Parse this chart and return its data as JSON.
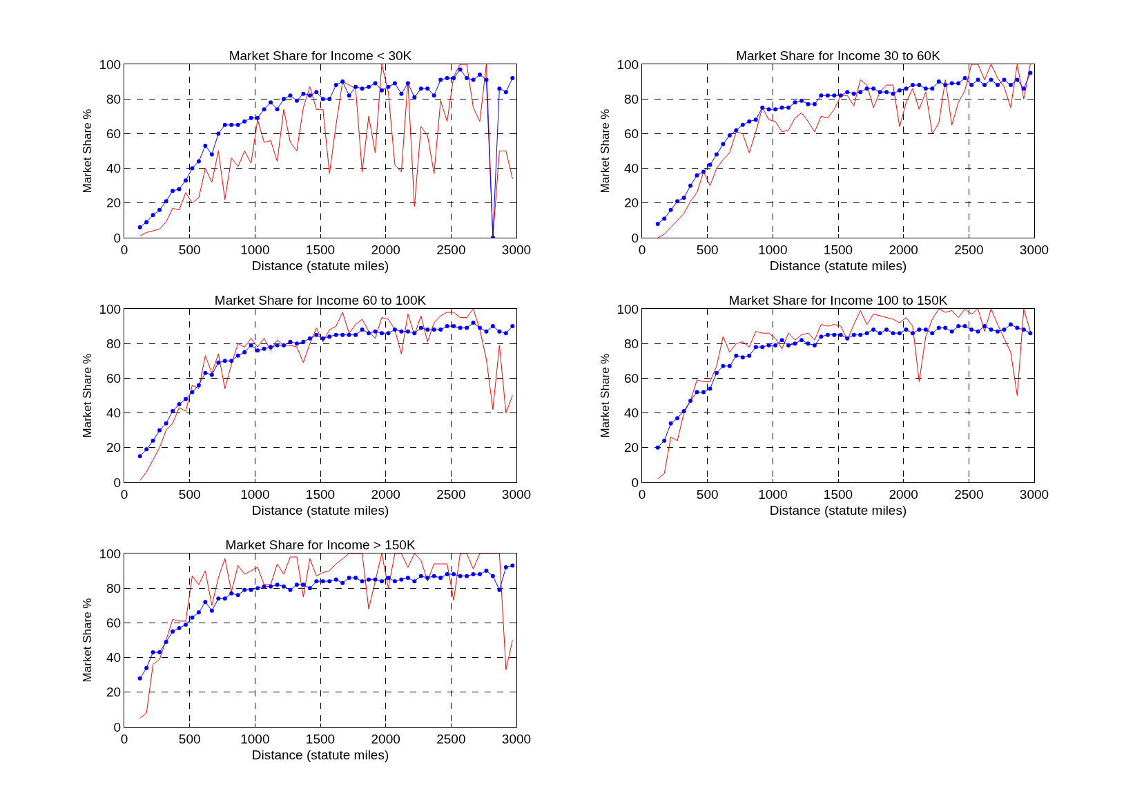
{
  "chart_data": [
    {
      "type": "line",
      "title": "Market Share for Income < 30K",
      "xlabel": "Distance (statute miles)",
      "ylabel": "Market Share %",
      "xlim": [
        0,
        3000
      ],
      "xticks": [
        0,
        500,
        1000,
        1500,
        2000,
        2500,
        3000
      ],
      "ylim": [
        0,
        100
      ],
      "yticks": [
        0,
        20,
        40,
        60,
        80,
        100
      ],
      "grid": true,
      "x": [
        120,
        170,
        220,
        270,
        320,
        370,
        420,
        470,
        520,
        570,
        620,
        670,
        720,
        770,
        820,
        870,
        920,
        970,
        1020,
        1070,
        1120,
        1170,
        1220,
        1270,
        1320,
        1370,
        1420,
        1470,
        1520,
        1570,
        1620,
        1670,
        1720,
        1770,
        1820,
        1870,
        1920,
        1970,
        2020,
        2070,
        2120,
        2170,
        2220,
        2270,
        2320,
        2370,
        2420,
        2470,
        2520,
        2570,
        2620,
        2670,
        2720,
        2770,
        2820,
        2870,
        2920,
        2970
      ],
      "series": [
        {
          "color": "#ff0000",
          "marker": "none",
          "values": [
            1,
            3,
            4,
            5,
            9,
            17,
            16,
            26,
            20,
            23,
            40,
            32,
            50,
            22,
            46,
            41,
            50,
            43,
            68,
            55,
            56,
            44,
            74,
            55,
            50,
            75,
            87,
            74,
            74,
            37,
            65,
            90,
            88,
            86,
            38,
            70,
            49,
            100,
            84,
            42,
            38,
            90,
            18,
            64,
            59,
            37,
            79,
            67,
            93,
            100,
            100,
            75,
            67,
            100,
            0,
            50,
            50,
            34
          ]
        },
        {
          "color": "#0000ff",
          "marker": "circle",
          "values": [
            6,
            9,
            13,
            16,
            21,
            27,
            28,
            33,
            40,
            44,
            53,
            48,
            60,
            65,
            65,
            65,
            67,
            69,
            69,
            74,
            78,
            74,
            80,
            82,
            79,
            83,
            82,
            84,
            80,
            80,
            88,
            90,
            82,
            87,
            86,
            87,
            89,
            85,
            87,
            89,
            83,
            89,
            81,
            86,
            86,
            82,
            91,
            92,
            92,
            97,
            92,
            91,
            94,
            91,
            0,
            86,
            84,
            92
          ]
        }
      ]
    },
    {
      "type": "line",
      "title": "Market Share for Income 30 to 60K",
      "xlabel": "Distance (statute miles)",
      "ylabel": "Market Share %",
      "xlim": [
        0,
        3000
      ],
      "xticks": [
        0,
        500,
        1000,
        1500,
        2000,
        2500,
        3000
      ],
      "ylim": [
        0,
        100
      ],
      "yticks": [
        0,
        20,
        40,
        60,
        80,
        100
      ],
      "grid": true,
      "x": [
        120,
        170,
        220,
        270,
        320,
        370,
        420,
        470,
        520,
        570,
        620,
        670,
        720,
        770,
        820,
        870,
        920,
        970,
        1020,
        1070,
        1120,
        1170,
        1220,
        1270,
        1320,
        1370,
        1420,
        1470,
        1520,
        1570,
        1620,
        1670,
        1720,
        1770,
        1820,
        1870,
        1920,
        1970,
        2020,
        2070,
        2120,
        2170,
        2220,
        2270,
        2320,
        2370,
        2420,
        2470,
        2520,
        2570,
        2620,
        2670,
        2720,
        2770,
        2820,
        2870,
        2920,
        2970
      ],
      "series": [
        {
          "color": "#ff0000",
          "marker": "none",
          "values": [
            0,
            2,
            6,
            10,
            14,
            21,
            26,
            38,
            30,
            40,
            45,
            49,
            61,
            60,
            49,
            61,
            75,
            68,
            67,
            61,
            62,
            69,
            72,
            67,
            61,
            70,
            69,
            74,
            82,
            82,
            76,
            91,
            88,
            75,
            84,
            88,
            88,
            64,
            78,
            86,
            74,
            84,
            60,
            66,
            91,
            65,
            78,
            85,
            100,
            100,
            91,
            100,
            92,
            87,
            75,
            100,
            80,
            100
          ]
        },
        {
          "color": "#0000ff",
          "marker": "circle",
          "values": [
            8,
            11,
            16,
            21,
            23,
            30,
            36,
            38,
            42,
            48,
            54,
            59,
            62,
            65,
            67,
            68,
            75,
            74,
            74,
            75,
            75,
            78,
            79,
            77,
            77,
            82,
            82,
            82,
            82,
            84,
            83,
            84,
            86,
            86,
            84,
            84,
            83,
            85,
            86,
            88,
            88,
            86,
            86,
            90,
            88,
            89,
            89,
            92,
            88,
            91,
            88,
            91,
            88,
            91,
            88,
            91,
            86,
            95
          ]
        }
      ]
    },
    {
      "type": "line",
      "title": "Market Share for Income 60 to 100K",
      "xlabel": "Distance (statute miles)",
      "ylabel": "Market Share %",
      "xlim": [
        0,
        3000
      ],
      "xticks": [
        0,
        500,
        1000,
        1500,
        2000,
        2500,
        3000
      ],
      "ylim": [
        0,
        100
      ],
      "yticks": [
        0,
        20,
        40,
        60,
        80,
        100
      ],
      "grid": true,
      "x": [
        120,
        170,
        220,
        270,
        320,
        370,
        420,
        470,
        520,
        570,
        620,
        670,
        720,
        770,
        820,
        870,
        920,
        970,
        1020,
        1070,
        1120,
        1170,
        1220,
        1270,
        1320,
        1370,
        1420,
        1470,
        1520,
        1570,
        1620,
        1670,
        1720,
        1770,
        1820,
        1870,
        1920,
        1970,
        2020,
        2070,
        2120,
        2170,
        2220,
        2270,
        2320,
        2370,
        2420,
        2470,
        2520,
        2570,
        2620,
        2670,
        2720,
        2770,
        2820,
        2870,
        2920,
        2970
      ],
      "series": [
        {
          "color": "#ff0000",
          "marker": "none",
          "values": [
            1,
            6,
            13,
            20,
            30,
            34,
            43,
            41,
            56,
            54,
            73,
            63,
            74,
            54,
            68,
            80,
            78,
            83,
            78,
            83,
            76,
            82,
            79,
            79,
            78,
            69,
            80,
            89,
            81,
            88,
            90,
            98,
            86,
            91,
            94,
            87,
            83,
            95,
            94,
            88,
            74,
            97,
            85,
            96,
            81,
            92,
            96,
            98,
            98,
            95,
            95,
            100,
            88,
            71,
            42,
            79,
            40,
            50
          ]
        },
        {
          "color": "#0000ff",
          "marker": "circle",
          "values": [
            15,
            19,
            24,
            30,
            34,
            41,
            45,
            48,
            52,
            56,
            63,
            62,
            69,
            70,
            70,
            73,
            75,
            79,
            76,
            77,
            78,
            79,
            79,
            81,
            80,
            81,
            83,
            85,
            83,
            84,
            85,
            85,
            85,
            85,
            88,
            86,
            87,
            86,
            86,
            88,
            87,
            87,
            86,
            89,
            88,
            88,
            88,
            90,
            90,
            89,
            89,
            92,
            89,
            87,
            90,
            87,
            86,
            90
          ]
        }
      ]
    },
    {
      "type": "line",
      "title": "Market Share for Income 100 to 150K",
      "xlabel": "Distance (statute miles)",
      "ylabel": "Market Share %",
      "xlim": [
        0,
        3000
      ],
      "xticks": [
        0,
        500,
        1000,
        1500,
        2000,
        2500,
        3000
      ],
      "ylim": [
        0,
        100
      ],
      "yticks": [
        0,
        20,
        40,
        60,
        80,
        100
      ],
      "grid": true,
      "x": [
        120,
        170,
        220,
        270,
        320,
        370,
        420,
        470,
        520,
        570,
        620,
        670,
        720,
        770,
        820,
        870,
        920,
        970,
        1020,
        1070,
        1120,
        1170,
        1220,
        1270,
        1320,
        1370,
        1420,
        1470,
        1520,
        1570,
        1620,
        1670,
        1720,
        1770,
        1820,
        1870,
        1920,
        1970,
        2020,
        2070,
        2120,
        2170,
        2220,
        2270,
        2320,
        2370,
        2420,
        2470,
        2520,
        2570,
        2620,
        2670,
        2720,
        2770,
        2820,
        2870,
        2920,
        2970
      ],
      "series": [
        {
          "color": "#ff0000",
          "marker": "none",
          "values": [
            2,
            5,
            26,
            24,
            40,
            47,
            59,
            58,
            58,
            67,
            84,
            75,
            80,
            81,
            78,
            87,
            86,
            86,
            83,
            77,
            86,
            82,
            85,
            86,
            82,
            91,
            90,
            91,
            90,
            82,
            91,
            99,
            91,
            97,
            96,
            95,
            94,
            92,
            95,
            90,
            58,
            84,
            94,
            100,
            98,
            99,
            95,
            100,
            97,
            100,
            87,
            100,
            91,
            83,
            75,
            50,
            100,
            87
          ]
        },
        {
          "color": "#0000ff",
          "marker": "circle",
          "values": [
            20,
            24,
            34,
            37,
            41,
            47,
            52,
            52,
            54,
            63,
            67,
            67,
            73,
            72,
            73,
            78,
            78,
            79,
            79,
            82,
            79,
            80,
            82,
            80,
            79,
            84,
            85,
            85,
            85,
            83,
            85,
            85,
            86,
            88,
            86,
            88,
            86,
            86,
            88,
            86,
            88,
            88,
            86,
            89,
            89,
            87,
            90,
            90,
            88,
            87,
            90,
            88,
            87,
            88,
            91,
            89,
            88,
            86
          ]
        }
      ]
    },
    {
      "type": "line",
      "title": "Market Share for Income > 150K",
      "xlabel": "Distance (statute miles)",
      "ylabel": "Market Share %",
      "xlim": [
        0,
        3000
      ],
      "xticks": [
        0,
        500,
        1000,
        1500,
        2000,
        2500,
        3000
      ],
      "ylim": [
        0,
        100
      ],
      "yticks": [
        0,
        20,
        40,
        60,
        80,
        100
      ],
      "grid": true,
      "x": [
        120,
        170,
        220,
        270,
        320,
        370,
        420,
        470,
        520,
        570,
        620,
        670,
        720,
        770,
        820,
        870,
        920,
        970,
        1020,
        1070,
        1120,
        1170,
        1220,
        1270,
        1320,
        1370,
        1420,
        1470,
        1520,
        1570,
        1620,
        1670,
        1720,
        1770,
        1820,
        1870,
        1920,
        1970,
        2020,
        2070,
        2120,
        2170,
        2220,
        2270,
        2320,
        2370,
        2420,
        2470,
        2520,
        2570,
        2620,
        2670,
        2720,
        2770,
        2820,
        2870,
        2920,
        2970
      ],
      "series": [
        {
          "color": "#ff0000",
          "marker": "none",
          "values": [
            5,
            8,
            36,
            39,
            50,
            62,
            61,
            61,
            87,
            82,
            90,
            70,
            86,
            97,
            78,
            93,
            88,
            90,
            92,
            82,
            82,
            94,
            88,
            98,
            98,
            75,
            97,
            87,
            89,
            90,
            94,
            97,
            100,
            100,
            100,
            68,
            84,
            100,
            80,
            100,
            100,
            92,
            100,
            96,
            84,
            94,
            94,
            94,
            73,
            100,
            100,
            91,
            100,
            100,
            100,
            100,
            33,
            50
          ]
        },
        {
          "color": "#0000ff",
          "marker": "circle",
          "values": [
            28,
            34,
            43,
            43,
            49,
            55,
            57,
            59,
            63,
            66,
            72,
            67,
            74,
            74,
            77,
            76,
            79,
            79,
            80,
            81,
            81,
            82,
            81,
            79,
            82,
            82,
            80,
            84,
            84,
            84,
            85,
            83,
            86,
            86,
            84,
            85,
            85,
            84,
            86,
            84,
            85,
            86,
            84,
            87,
            86,
            87,
            86,
            88,
            88,
            87,
            87,
            88,
            88,
            90,
            87,
            79,
            92,
            93
          ]
        }
      ]
    }
  ]
}
